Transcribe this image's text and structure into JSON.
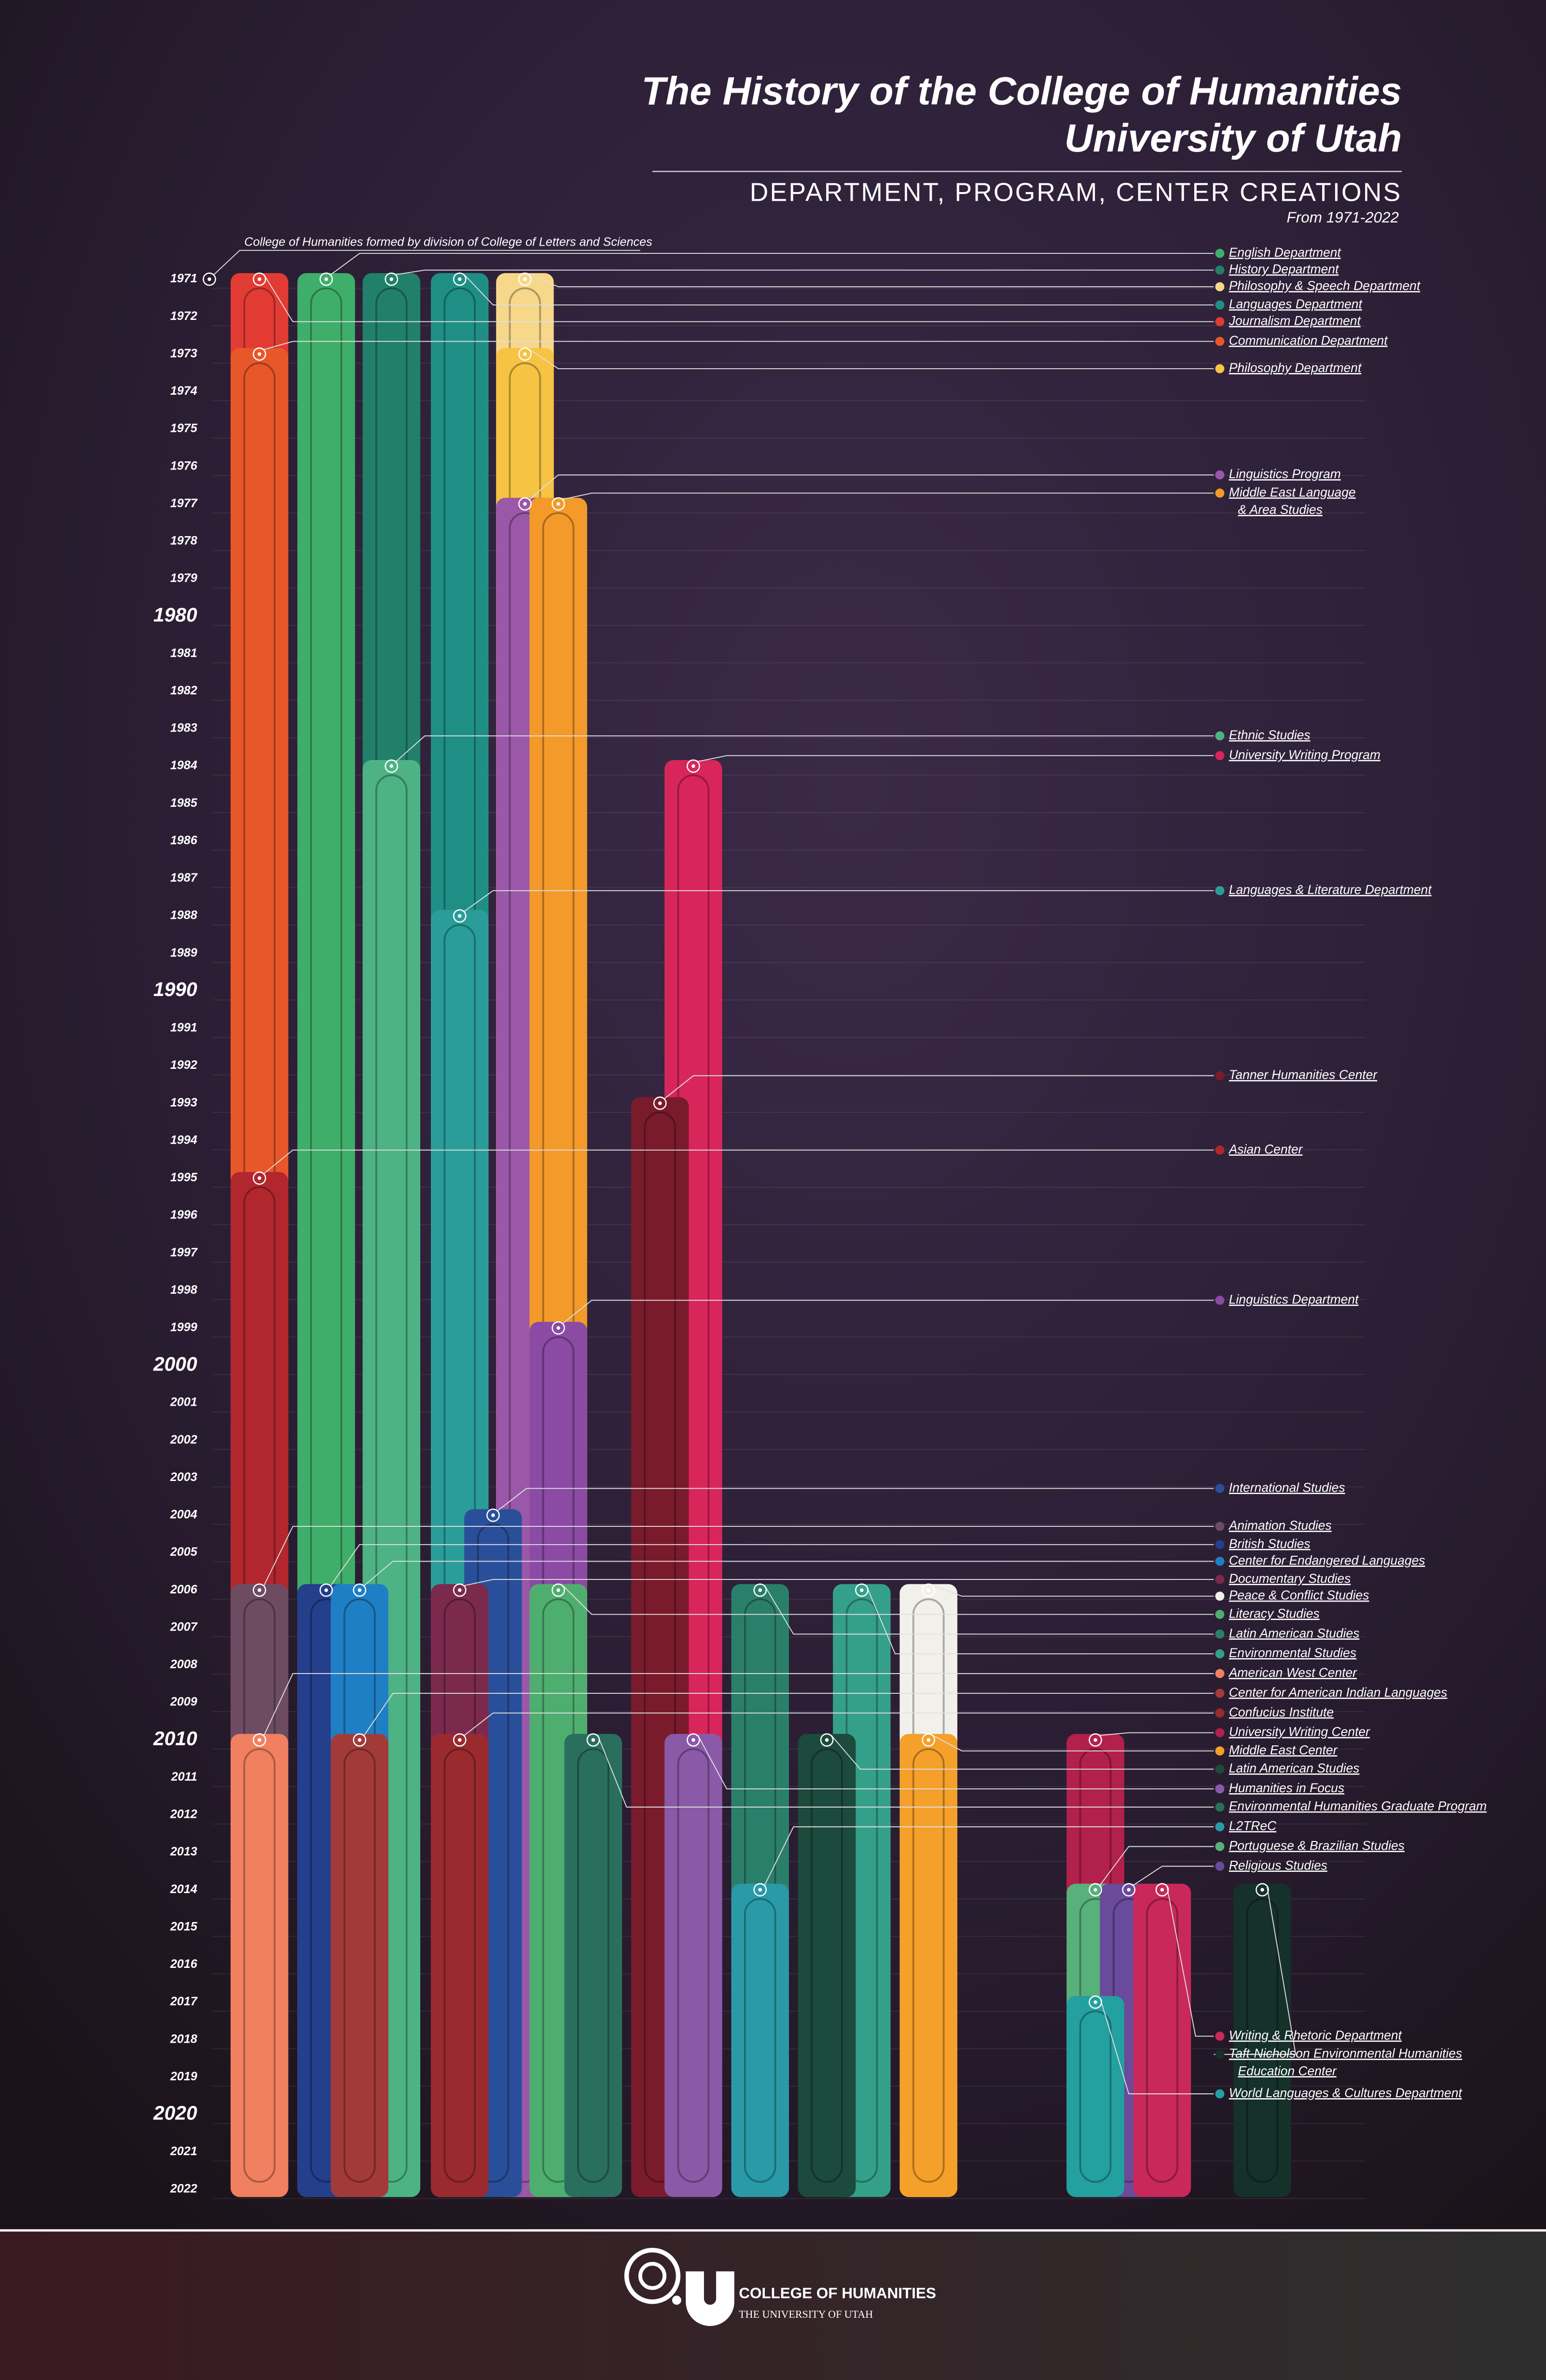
{
  "header": {
    "title_lines": [
      "The History of the College of Humanities",
      "University of Utah"
    ],
    "subtitle": "DEPARTMENT, PROGRAM, CENTER CREATIONS",
    "range": "From 1971-2022"
  },
  "founding_note": "College of Humanities formed by division of College of Letters and Sciences",
  "years": [
    1971,
    1972,
    1973,
    1974,
    1975,
    1976,
    1977,
    1978,
    1979,
    1980,
    1981,
    1982,
    1983,
    1984,
    1985,
    1986,
    1987,
    1988,
    1989,
    1990,
    1991,
    1992,
    1993,
    1994,
    1995,
    1996,
    1997,
    1998,
    1999,
    2000,
    2001,
    2002,
    2003,
    2004,
    2005,
    2006,
    2007,
    2008,
    2009,
    2010,
    2011,
    2012,
    2013,
    2014,
    2015,
    2016,
    2017,
    2018,
    2019,
    2020,
    2021,
    2022
  ],
  "events": [
    {
      "lines": [
        "English Department"
      ],
      "year": 1971,
      "color": "#3fae6a"
    },
    {
      "lines": [
        "History Department"
      ],
      "year": 1971,
      "color": "#21806a"
    },
    {
      "lines": [
        "Philosophy & Speech Department"
      ],
      "year": 1971,
      "color": "#f7d78a"
    },
    {
      "lines": [
        "Languages Department"
      ],
      "year": 1971,
      "color": "#1f8f86"
    },
    {
      "lines": [
        "Journalism Department"
      ],
      "year": 1971,
      "color": "#e23b33"
    },
    {
      "lines": [
        "Communication Department"
      ],
      "year": 1973,
      "color": "#e8572a"
    },
    {
      "lines": [
        "Philosophy Department"
      ],
      "year": 1973,
      "color": "#f6c343"
    },
    {
      "lines": [
        "Linguistics Program"
      ],
      "year": 1977,
      "color": "#9b57a8"
    },
    {
      "lines": [
        "Middle East Language",
        "& Area Studies"
      ],
      "year": 1977,
      "color": "#f39a2b"
    },
    {
      "lines": [
        "Ethnic Studies"
      ],
      "year": 1984,
      "color": "#4db384"
    },
    {
      "lines": [
        "University Writing Program"
      ],
      "year": 1984,
      "color": "#d8265a"
    },
    {
      "lines": [
        "Languages & Literature Department"
      ],
      "year": 1988,
      "color": "#2a9d9a"
    },
    {
      "lines": [
        "Tanner Humanities Center"
      ],
      "year": 1993,
      "color": "#7a1b2c"
    },
    {
      "lines": [
        "Asian Center"
      ],
      "year": 1995,
      "color": "#b2262e"
    },
    {
      "lines": [
        "Linguistics Department"
      ],
      "year": 1999,
      "color": "#8b4aa3"
    },
    {
      "lines": [
        "International Studies"
      ],
      "year": 2004,
      "color": "#2a4f9a"
    },
    {
      "lines": [
        "Animation Studies"
      ],
      "year": 2006,
      "color": "#6d4c62"
    },
    {
      "lines": [
        "British Studies"
      ],
      "year": 2006,
      "color": "#243f8c"
    },
    {
      "lines": [
        "Center for Endangered Languages"
      ],
      "year": 2006,
      "color": "#1f7fc4"
    },
    {
      "lines": [
        "Documentary Studies"
      ],
      "year": 2006,
      "color": "#7b2a4e"
    },
    {
      "lines": [
        "Peace & Conflict Studies"
      ],
      "year": 2006,
      "color": "#f2f0ea"
    },
    {
      "lines": [
        "Literacy Studies"
      ],
      "year": 2006,
      "color": "#4eae70"
    },
    {
      "lines": [
        "Latin American Studies"
      ],
      "year": 2006,
      "color": "#2a7f6b"
    },
    {
      "lines": [
        "Environmental Studies"
      ],
      "year": 2006,
      "color": "#35a08a"
    },
    {
      "lines": [
        "American West Center"
      ],
      "year": 2010,
      "color": "#f08060"
    },
    {
      "lines": [
        "Center for American Indian Languages"
      ],
      "year": 2010,
      "color": "#a33a3a"
    },
    {
      "lines": [
        "Confucius Institute"
      ],
      "year": 2010,
      "color": "#9a2a2e"
    },
    {
      "lines": [
        "University Writing Center"
      ],
      "year": 2010,
      "color": "#b2204c"
    },
    {
      "lines": [
        "Middle East Center"
      ],
      "year": 2010,
      "color": "#f5a02a"
    },
    {
      "lines": [
        "Latin American Studies"
      ],
      "year": 2010,
      "color": "#1c4a3c"
    },
    {
      "lines": [
        "Humanities in Focus"
      ],
      "year": 2010,
      "color": "#8a5aa8"
    },
    {
      "lines": [
        "Environmental Humanities Graduate Program"
      ],
      "year": 2010,
      "color": "#2a6e5e"
    },
    {
      "lines": [
        "L2TReC"
      ],
      "year": 2014,
      "color": "#2a9aa8"
    },
    {
      "lines": [
        "Portuguese & Brazilian Studies"
      ],
      "year": 2014,
      "color": "#58b07a"
    },
    {
      "lines": [
        "Religious Studies"
      ],
      "year": 2014,
      "color": "#6a4a9a"
    },
    {
      "lines": [
        "Writing & Rhetoric Department"
      ],
      "year": 2014,
      "color": "#c8285a"
    },
    {
      "lines": [
        "Taft-Nicholson Environmental Humanities",
        "Education Center"
      ],
      "year": 2014,
      "color": "#16302a"
    },
    {
      "lines": [
        "World Languages & Cultures Department"
      ],
      "year": 2017,
      "color": "#23a0a0"
    }
  ],
  "footer": {
    "college": "COLLEGE OF HUMANITIES",
    "university": "THE UNIVERSITY OF UTAH"
  }
}
